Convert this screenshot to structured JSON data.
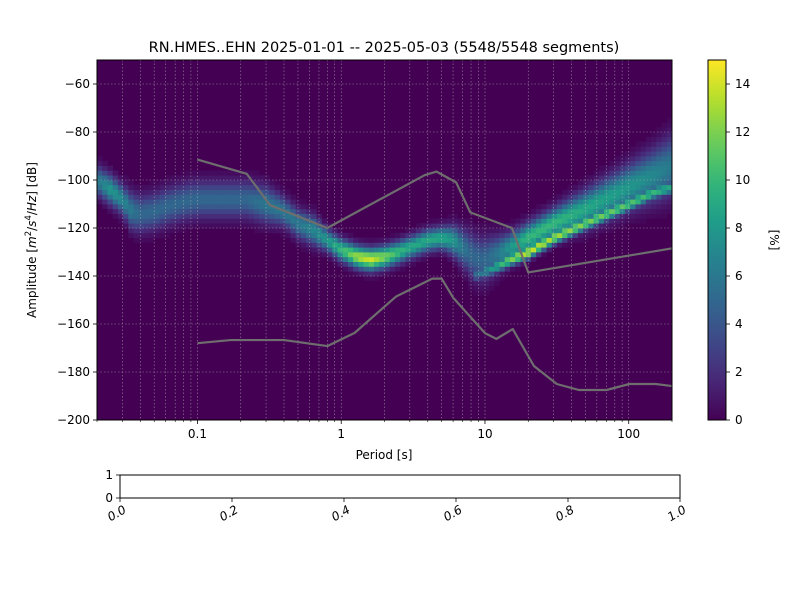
{
  "chart_data": [
    {
      "type": "heatmap",
      "title": "RN.HMES..EHN   2025-01-01 -- 2025-05-03  (5548/5548 segments)",
      "xlabel": "Period [s]",
      "ylabel_parts": [
        "Amplitude [",
        "m",
        "2",
        "/",
        "s",
        "4",
        "/",
        "Hz",
        "] [dB]"
      ],
      "x_scale": "log",
      "xlim": [
        0.02,
        200
      ],
      "ylim": [
        -200,
        -50
      ],
      "x_ticks": [
        {
          "value": 0.1,
          "label": "0.1"
        },
        {
          "value": 1,
          "label": "1"
        },
        {
          "value": 10,
          "label": "10"
        },
        {
          "value": 100,
          "label": "100"
        }
      ],
      "y_ticks": [
        {
          "value": -60,
          "label": "−60"
        },
        {
          "value": -80,
          "label": "−80"
        },
        {
          "value": -100,
          "label": "−100"
        },
        {
          "value": -120,
          "label": "−120"
        },
        {
          "value": -140,
          "label": "−140"
        },
        {
          "value": -160,
          "label": "−160"
        },
        {
          "value": -180,
          "label": "−180"
        },
        {
          "value": -200,
          "label": "−200"
        }
      ],
      "grid": true,
      "colorbar": {
        "label": "[%]",
        "min": 0,
        "max": 15,
        "ticks": [
          {
            "value": 0,
            "label": "0"
          },
          {
            "value": 2,
            "label": "2"
          },
          {
            "value": 4,
            "label": "4"
          },
          {
            "value": 6,
            "label": "6"
          },
          {
            "value": 8,
            "label": "8"
          },
          {
            "value": 10,
            "label": "10"
          },
          {
            "value": 12,
            "label": "12"
          },
          {
            "value": 14,
            "label": "14"
          }
        ],
        "colormap": "viridis"
      },
      "mode_curve": {
        "name": "mode",
        "periods": [
          0.02,
          0.025,
          0.03,
          0.035,
          0.04,
          0.05,
          0.06,
          0.08,
          0.1,
          0.13,
          0.17,
          0.22,
          0.3,
          0.4,
          0.5,
          0.65,
          0.8,
          1.0,
          1.3,
          1.6,
          2.0,
          2.5,
          3.0,
          4.0,
          5.0,
          6.0,
          7.0,
          8.0,
          9.0,
          10,
          12,
          15,
          20,
          30,
          50,
          100,
          150,
          200
        ],
        "db": [
          -100,
          -104,
          -108,
          -113,
          -114,
          -113,
          -111,
          -109,
          -108,
          -108,
          -108,
          -108,
          -110,
          -113,
          -118,
          -121,
          -125,
          -129,
          -132,
          -133,
          -132,
          -130,
          -128,
          -125,
          -124,
          -125,
          -128,
          -131,
          -133,
          -133,
          -131,
          -128,
          -124,
          -118,
          -112,
          -103,
          -98,
          -94
        ],
        "spread_db": [
          4,
          4,
          4,
          5,
          5,
          5,
          5,
          5,
          5,
          5,
          5,
          5,
          5,
          4,
          4,
          4,
          3,
          3,
          3,
          3,
          3,
          3,
          3,
          3,
          3,
          4,
          5,
          6,
          6,
          6,
          5,
          4,
          4,
          4,
          5,
          6,
          7,
          8
        ],
        "peak_percent": [
          6,
          8,
          7,
          6,
          5,
          5,
          5,
          5,
          5,
          5,
          5,
          5,
          6,
          6,
          6,
          7,
          8,
          10,
          13,
          14,
          12,
          10,
          9,
          9,
          9,
          8,
          6,
          5,
          5,
          5,
          6,
          8,
          10,
          10,
          9,
          8,
          7,
          6
        ]
      },
      "branch_curve": {
        "name": "second branch",
        "periods": [
          8,
          10,
          12,
          15,
          20,
          30,
          50,
          100,
          150,
          200
        ],
        "db": [
          -140,
          -138,
          -136,
          -133,
          -130,
          -124,
          -118,
          -110,
          -105,
          -103
        ],
        "peak_percent": [
          4,
          7,
          9,
          12,
          14,
          13,
          12,
          11,
          10,
          9
        ]
      },
      "reference_models": [
        {
          "name": "high noise model",
          "periods": [
            0.1,
            0.22,
            0.32,
            0.8,
            3.8,
            4.6,
            6.3,
            7.9,
            15.4,
            20,
            354.8
          ],
          "db": [
            -91.5,
            -97.4,
            -110.5,
            -120,
            -98,
            -96.5,
            -101,
            -113.5,
            -120,
            -138.5,
            -126
          ]
        },
        {
          "name": "low noise model",
          "periods": [
            0.1,
            0.17,
            0.4,
            0.8,
            1.24,
            2.4,
            4.3,
            5.0,
            6.0,
            10,
            12,
            15.6,
            21.9,
            31.6,
            45,
            70,
            101,
            154,
            328
          ],
          "db": [
            -168,
            -166.7,
            -166.7,
            -169.2,
            -163.7,
            -148.6,
            -141.1,
            -141.1,
            -149,
            -163.8,
            -166.2,
            -162.1,
            -177.5,
            -185,
            -187.5,
            -187.5,
            -185,
            -185,
            -187.5
          ]
        }
      ]
    },
    {
      "type": "empty",
      "xlim": [
        0,
        1
      ],
      "ylim": [
        0,
        1
      ],
      "x_ticks": [
        {
          "value": 0.0,
          "label": "0.0"
        },
        {
          "value": 0.2,
          "label": "0.2"
        },
        {
          "value": 0.4,
          "label": "0.4"
        },
        {
          "value": 0.6,
          "label": "0.6"
        },
        {
          "value": 0.8,
          "label": "0.8"
        },
        {
          "value": 1.0,
          "label": "1.0"
        }
      ],
      "y_ticks": [
        {
          "value": 0,
          "label": "0"
        },
        {
          "value": 1,
          "label": "1"
        }
      ]
    }
  ]
}
